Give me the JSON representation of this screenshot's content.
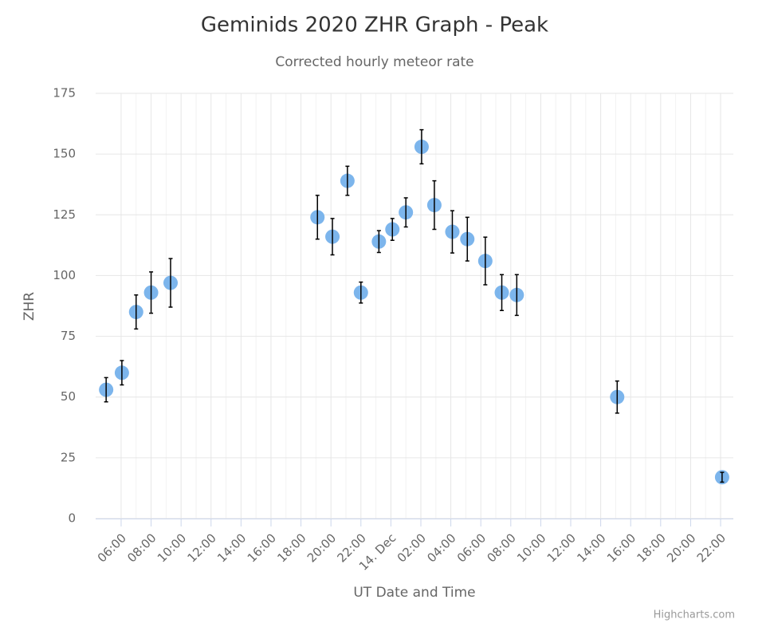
{
  "chart_data": {
    "type": "scatter",
    "title": "Geminids 2020 ZHR Graph - Peak",
    "subtitle": "Corrected hourly meteor rate",
    "x_label": "UT Date and Time",
    "y_label": "ZHR",
    "credits": "Highcharts.com",
    "color": "#7cb5ec",
    "error_color": "#000000",
    "grid": true,
    "x": [
      5.0,
      6.05,
      7.0,
      8.0,
      9.3,
      19.1,
      20.1,
      21.1,
      22.0,
      23.2,
      24.1,
      25.0,
      26.05,
      26.9,
      28.1,
      29.1,
      30.3,
      31.4,
      32.4,
      39.1,
      46.1
    ],
    "values": [
      53,
      60,
      85,
      93,
      97,
      124,
      116,
      139,
      93,
      114,
      119,
      126,
      153,
      129,
      118,
      115,
      106,
      93,
      92,
      50,
      17
    ],
    "errors": [
      5,
      5,
      7,
      8.5,
      10,
      9,
      7.5,
      6,
      4.3,
      4.5,
      4.5,
      6,
      7,
      10,
      8.7,
      9,
      9.8,
      7.4,
      8.4,
      6.6,
      2
    ],
    "xlim": [
      4.3,
      46.85
    ],
    "ylim": [
      0,
      175
    ],
    "yticks": [
      0,
      25,
      50,
      75,
      100,
      125,
      150,
      175
    ],
    "xticks": [
      {
        "value": 6,
        "label": "06:00"
      },
      {
        "value": 8,
        "label": "08:00"
      },
      {
        "value": 10,
        "label": "10:00"
      },
      {
        "value": 12,
        "label": "12:00"
      },
      {
        "value": 14,
        "label": "14:00"
      },
      {
        "value": 16,
        "label": "16:00"
      },
      {
        "value": 18,
        "label": "18:00"
      },
      {
        "value": 20,
        "label": "20:00"
      },
      {
        "value": 22,
        "label": "22:00"
      },
      {
        "value": 24,
        "label": "14. Dec"
      },
      {
        "value": 26,
        "label": "02:00"
      },
      {
        "value": 28,
        "label": "04:00"
      },
      {
        "value": 30,
        "label": "06:00"
      },
      {
        "value": 32,
        "label": "08:00"
      },
      {
        "value": 34,
        "label": "10:00"
      },
      {
        "value": 36,
        "label": "12:00"
      },
      {
        "value": 38,
        "label": "14:00"
      },
      {
        "value": 40,
        "label": "16:00"
      },
      {
        "value": 42,
        "label": "18:00"
      },
      {
        "value": 44,
        "label": "20:00"
      },
      {
        "value": 46,
        "label": "22:00"
      }
    ]
  }
}
